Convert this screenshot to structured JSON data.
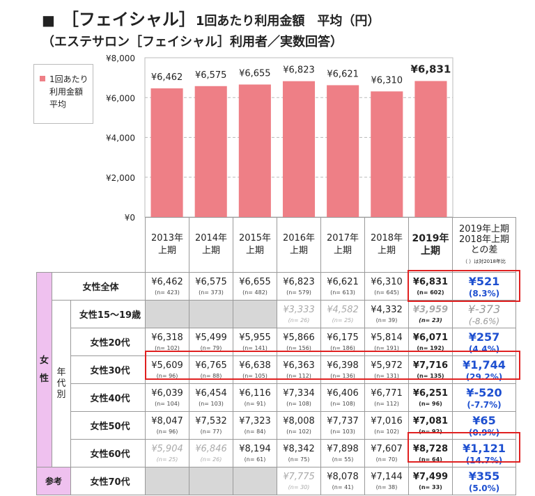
{
  "title": {
    "bullet": "■",
    "main": "［フェイシャル］",
    "sub": "1回あたり利用金額　平均（円）",
    "line2": "（エステサロン［フェイシャル］利用者／実数回答）"
  },
  "legend": {
    "lines": [
      "1回あたり",
      "利用金額",
      "平均"
    ],
    "color": "#ee7f86"
  },
  "chart_data": {
    "type": "bar",
    "categories": [
      "2013年上期",
      "2014年上期",
      "2015年上期",
      "2016年上期",
      "2017年上期",
      "2018年上期",
      "2019年上期"
    ],
    "series": [
      {
        "name": "1回あたり利用金額平均",
        "values": [
          6462,
          6575,
          6655,
          6823,
          6621,
          6310,
          6831
        ]
      }
    ],
    "data_labels": [
      "¥6,462",
      "¥6,575",
      "¥6,655",
      "¥6,823",
      "¥6,621",
      "¥6,310",
      "¥6,831"
    ],
    "ylim": [
      0,
      8000
    ],
    "yticks": [
      0,
      2000,
      4000,
      6000,
      8000
    ],
    "ytick_labels": [
      "¥0",
      "¥2,000",
      "¥4,000",
      "¥6,000",
      "¥8,000"
    ],
    "grid": true,
    "legend_position": "top-left",
    "bar_color": "#ee7f86"
  },
  "table": {
    "header": {
      "years": [
        [
          "2013年",
          "上期"
        ],
        [
          "2014年",
          "上期"
        ],
        [
          "2015年",
          "上期"
        ],
        [
          "2016年",
          "上期"
        ],
        [
          "2017年",
          "上期"
        ],
        [
          "2018年",
          "上期"
        ],
        [
          "2019年",
          "上期"
        ]
      ],
      "diff": [
        "2019年上期",
        "2018年上期",
        "との差",
        "（ ）は対2018年比"
      ]
    },
    "female_label": "女性",
    "group_label": "年代別",
    "reference_label": "参考",
    "rows": [
      {
        "label": "女性全体",
        "cells": [
          [
            "¥6,462",
            "(n= 423)"
          ],
          [
            "¥6,575",
            "(n= 373)"
          ],
          [
            "¥6,655",
            "(n= 482)"
          ],
          [
            "¥6,823",
            "(n= 579)"
          ],
          [
            "¥6,621",
            "(n= 613)"
          ],
          [
            "¥6,310",
            "(n= 645)"
          ],
          [
            "¥6,831",
            "(n= 602)"
          ]
        ],
        "diff": [
          "¥521",
          "(8.3%)"
        ]
      },
      {
        "label": "女性15～19歳",
        "cells": [
          null,
          null,
          null,
          [
            "¥3,333",
            "(n= 26)"
          ],
          [
            "¥4,582",
            "(n= 25)"
          ],
          [
            "¥4,332",
            "(n= 39)"
          ],
          [
            "¥3,959",
            "(n= 23)"
          ]
        ],
        "diff": [
          "¥-373",
          "(-8.6%)"
        ]
      },
      {
        "label": "女性20代",
        "cells": [
          [
            "¥6,318",
            "(n= 102)"
          ],
          [
            "¥5,499",
            "(n= 79)"
          ],
          [
            "¥5,955",
            "(n= 141)"
          ],
          [
            "¥5,866",
            "(n= 156)"
          ],
          [
            "¥6,175",
            "(n= 186)"
          ],
          [
            "¥5,814",
            "(n= 191)"
          ],
          [
            "¥6,071",
            "(n= 192)"
          ]
        ],
        "diff": [
          "¥257",
          "(4.4%)"
        ]
      },
      {
        "label": "女性30代",
        "cells": [
          [
            "¥5,609",
            "(n= 96)"
          ],
          [
            "¥6,765",
            "(n= 88)"
          ],
          [
            "¥6,638",
            "(n= 105)"
          ],
          [
            "¥6,363",
            "(n= 112)"
          ],
          [
            "¥6,398",
            "(n= 136)"
          ],
          [
            "¥5,972",
            "(n= 131)"
          ],
          [
            "¥7,716",
            "(n= 135)"
          ]
        ],
        "diff": [
          "¥1,744",
          "(29.2%)"
        ]
      },
      {
        "label": "女性40代",
        "cells": [
          [
            "¥6,039",
            "(n= 104)"
          ],
          [
            "¥6,454",
            "(n= 103)"
          ],
          [
            "¥6,116",
            "(n= 91)"
          ],
          [
            "¥7,334",
            "(n= 108)"
          ],
          [
            "¥6,406",
            "(n= 108)"
          ],
          [
            "¥6,771",
            "(n= 112)"
          ],
          [
            "¥6,251",
            "(n= 96)"
          ]
        ],
        "diff": [
          "¥-520",
          "(-7.7%)"
        ]
      },
      {
        "label": "女性50代",
        "cells": [
          [
            "¥8,047",
            "(n= 96)"
          ],
          [
            "¥7,532",
            "(n= 77)"
          ],
          [
            "¥7,323",
            "(n= 84)"
          ],
          [
            "¥8,008",
            "(n= 102)"
          ],
          [
            "¥7,737",
            "(n= 103)"
          ],
          [
            "¥7,016",
            "(n= 102)"
          ],
          [
            "¥7,081",
            "(n= 92)"
          ]
        ],
        "diff": [
          "¥65",
          "(0.9%)"
        ]
      },
      {
        "label": "女性60代",
        "cells": [
          [
            "¥5,904",
            "(n= 25)"
          ],
          [
            "¥6,846",
            "(n= 26)"
          ],
          [
            "¥8,194",
            "(n= 61)"
          ],
          [
            "¥8,342",
            "(n= 75)"
          ],
          [
            "¥7,898",
            "(n= 55)"
          ],
          [
            "¥7,607",
            "(n= 70)"
          ],
          [
            "¥8,728",
            "(n= 64)"
          ]
        ],
        "diff": [
          "¥1,121",
          "(14.7%)"
        ]
      },
      {
        "label": "女性70代",
        "cells": [
          null,
          null,
          null,
          [
            "¥7,775",
            "(n= 30)"
          ],
          [
            "¥8,078",
            "(n= 41)"
          ],
          [
            "¥7,144",
            "(n= 38)"
          ],
          [
            "¥7,499",
            "(n= 33)"
          ]
        ],
        "diff": [
          "¥355",
          "(5.0%)"
        ]
      }
    ],
    "light_cells": [
      [
        1,
        3
      ],
      [
        1,
        4
      ],
      [
        1,
        6
      ],
      [
        6,
        0
      ],
      [
        6,
        1
      ],
      [
        7,
        3
      ]
    ],
    "light_diffs": [
      1
    ]
  }
}
